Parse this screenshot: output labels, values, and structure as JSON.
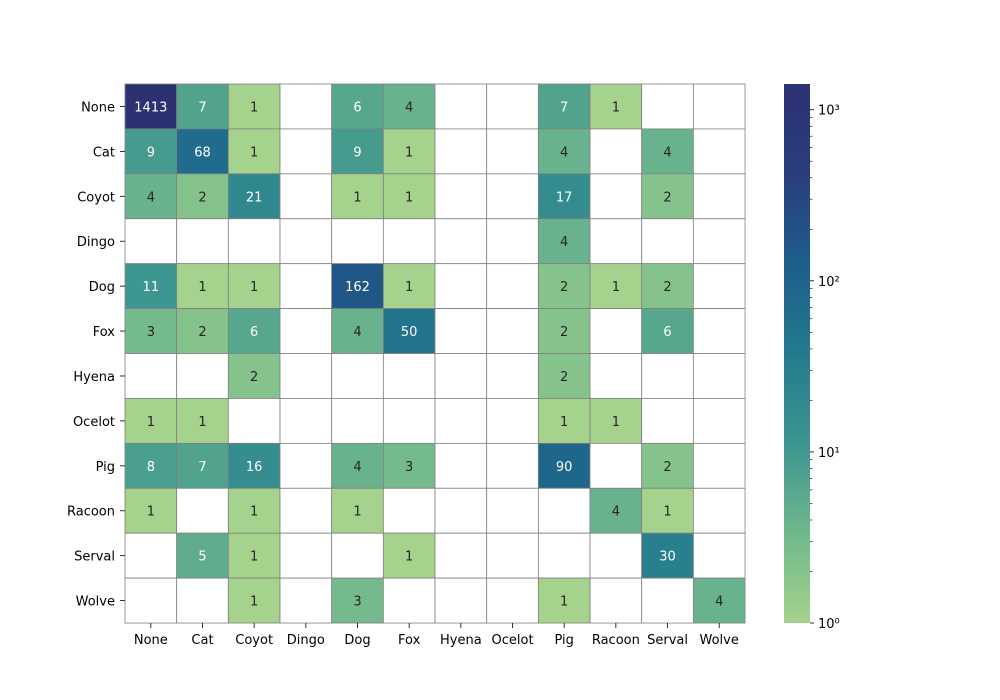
{
  "chart_data": {
    "type": "heatmap",
    "title": "",
    "xlabel": "",
    "ylabel": "",
    "rows": [
      "None",
      "Cat",
      "Coyot",
      "Dingo",
      "Dog",
      "Fox",
      "Hyena",
      "Ocelot",
      "Pig",
      "Racoon",
      "Serval",
      "Wolve"
    ],
    "columns": [
      "None",
      "Cat",
      "Coyot",
      "Dingo",
      "Dog",
      "Fox",
      "Hyena",
      "Ocelot",
      "Pig",
      "Racoon",
      "Serval",
      "Wolve"
    ],
    "values": [
      [
        1413,
        7,
        1,
        null,
        6,
        4,
        null,
        null,
        7,
        1,
        null,
        null
      ],
      [
        9,
        68,
        1,
        null,
        9,
        1,
        null,
        null,
        4,
        null,
        4,
        null
      ],
      [
        4,
        2,
        21,
        null,
        1,
        1,
        null,
        null,
        17,
        null,
        2,
        null
      ],
      [
        null,
        null,
        null,
        null,
        null,
        null,
        null,
        null,
        4,
        null,
        null,
        null
      ],
      [
        11,
        1,
        1,
        null,
        162,
        1,
        null,
        null,
        2,
        1,
        2,
        null
      ],
      [
        3,
        2,
        6,
        null,
        4,
        50,
        null,
        null,
        2,
        null,
        6,
        null
      ],
      [
        null,
        null,
        2,
        null,
        null,
        null,
        null,
        null,
        2,
        null,
        null,
        null
      ],
      [
        1,
        1,
        null,
        null,
        null,
        null,
        null,
        null,
        1,
        1,
        null,
        null
      ],
      [
        8,
        7,
        16,
        null,
        4,
        3,
        null,
        null,
        90,
        null,
        2,
        null
      ],
      [
        1,
        null,
        1,
        null,
        1,
        null,
        null,
        null,
        null,
        4,
        1,
        null
      ],
      [
        null,
        5,
        1,
        null,
        null,
        1,
        null,
        null,
        null,
        null,
        30,
        null
      ],
      [
        null,
        null,
        1,
        null,
        3,
        null,
        null,
        null,
        1,
        null,
        null,
        4
      ]
    ],
    "colorbar": {
      "scale": "log",
      "min": 1,
      "max": 1413,
      "ticks": [
        {
          "value": 1,
          "label": "10⁰"
        },
        {
          "value": 10,
          "label": "10¹"
        },
        {
          "value": 100,
          "label": "10²"
        },
        {
          "value": 1000,
          "label": "10³"
        }
      ],
      "colormap": "crest",
      "color_stops": [
        "#a5d28c",
        "#6fb88c",
        "#3d9590",
        "#237a8d",
        "#1d5e8a",
        "#2a3e7a",
        "#2c3172"
      ]
    },
    "grid_color": "#808080"
  }
}
